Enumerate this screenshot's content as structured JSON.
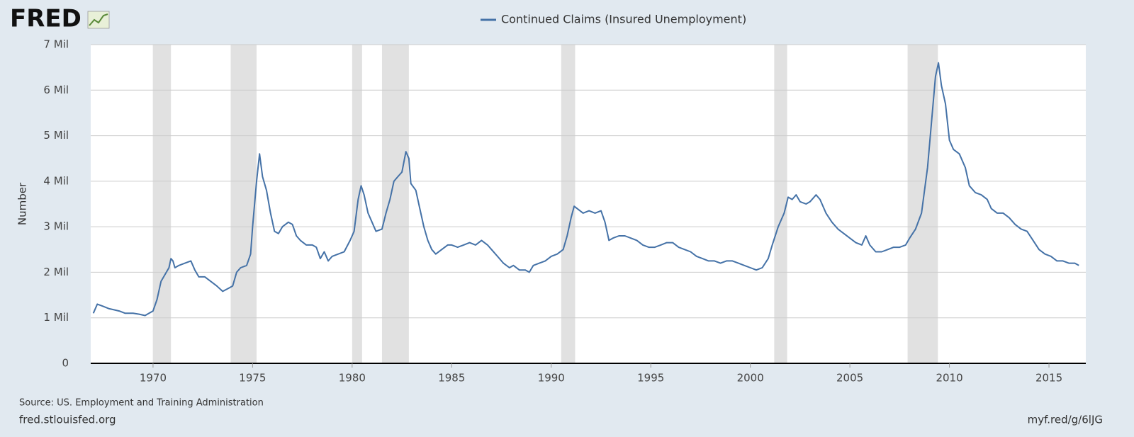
{
  "chart_data": {
    "type": "line",
    "logo": "FRED",
    "ylabel": "Number",
    "source": "Source: US. Employment and Training Administration",
    "site": "fred.stlouisfed.org",
    "short_url": "myf.red/g/6lJG",
    "xlim": [
      1966.87,
      2016.85
    ],
    "ylim": [
      0,
      7
    ],
    "xticks": [
      1970,
      1975,
      1980,
      1985,
      1990,
      1995,
      2000,
      2005,
      2010,
      2015
    ],
    "yticks": [
      {
        "value": 0,
        "label": "0"
      },
      {
        "value": 1,
        "label": "1 Mil"
      },
      {
        "value": 2,
        "label": "2 Mil"
      },
      {
        "value": 3,
        "label": "3 Mil"
      },
      {
        "value": 4,
        "label": "4 Mil"
      },
      {
        "value": 5,
        "label": "5 Mil"
      },
      {
        "value": 6,
        "label": "6 Mil"
      },
      {
        "value": 7,
        "label": "7 Mil"
      }
    ],
    "grid": true,
    "recession_color": "#e1e1e1",
    "recessions": [
      [
        1969.99,
        1970.9
      ],
      [
        1973.9,
        1975.2
      ],
      [
        1980.0,
        1980.5
      ],
      [
        1981.5,
        1982.85
      ],
      [
        1990.5,
        1991.2
      ],
      [
        2001.2,
        2001.85
      ],
      [
        2007.9,
        2009.42
      ]
    ],
    "x": [
      1967.0,
      1967.2,
      1967.5,
      1967.8,
      1968.0,
      1968.3,
      1968.6,
      1969.0,
      1969.3,
      1969.6,
      1969.8,
      1970.0,
      1970.2,
      1970.4,
      1970.6,
      1970.8,
      1970.9,
      1971.0,
      1971.1,
      1971.3,
      1971.6,
      1971.9,
      1972.1,
      1972.3,
      1972.6,
      1972.9,
      1973.2,
      1973.5,
      1973.8,
      1974.0,
      1974.2,
      1974.4,
      1974.7,
      1974.9,
      1975.0,
      1975.2,
      1975.35,
      1975.5,
      1975.7,
      1975.9,
      1976.1,
      1976.3,
      1976.5,
      1976.8,
      1977.0,
      1977.2,
      1977.4,
      1977.7,
      1978.0,
      1978.2,
      1978.4,
      1978.6,
      1978.8,
      1979.0,
      1979.3,
      1979.6,
      1979.9,
      1980.1,
      1980.3,
      1980.45,
      1980.6,
      1980.8,
      1981.0,
      1981.2,
      1981.5,
      1981.7,
      1981.9,
      1982.1,
      1982.3,
      1982.5,
      1982.7,
      1982.85,
      1982.95,
      1983.2,
      1983.4,
      1983.6,
      1983.8,
      1984.0,
      1984.2,
      1984.5,
      1984.8,
      1985.0,
      1985.3,
      1985.6,
      1985.9,
      1986.2,
      1986.5,
      1986.8,
      1987.0,
      1987.3,
      1987.6,
      1987.9,
      1988.1,
      1988.4,
      1988.7,
      1988.9,
      1989.1,
      1989.4,
      1989.7,
      1990.0,
      1990.3,
      1990.6,
      1990.8,
      1991.0,
      1991.15,
      1991.3,
      1991.6,
      1991.9,
      1992.2,
      1992.5,
      1992.7,
      1992.9,
      1993.1,
      1993.4,
      1993.7,
      1994.0,
      1994.3,
      1994.6,
      1994.9,
      1995.2,
      1995.5,
      1995.8,
      1996.1,
      1996.4,
      1996.7,
      1997.0,
      1997.3,
      1997.6,
      1997.9,
      1998.2,
      1998.5,
      1998.8,
      1999.1,
      1999.4,
      1999.7,
      2000.0,
      2000.3,
      2000.6,
      2000.9,
      2001.1,
      2001.4,
      2001.7,
      2001.9,
      2002.1,
      2002.3,
      2002.5,
      2002.8,
      2003.0,
      2003.3,
      2003.5,
      2003.8,
      2004.1,
      2004.4,
      2004.7,
      2005.0,
      2005.3,
      2005.6,
      2005.8,
      2006.0,
      2006.3,
      2006.6,
      2006.9,
      2007.2,
      2007.5,
      2007.8,
      2008.0,
      2008.3,
      2008.6,
      2008.9,
      2009.1,
      2009.3,
      2009.45,
      2009.6,
      2009.8,
      2010.0,
      2010.2,
      2010.5,
      2010.8,
      2011.0,
      2011.3,
      2011.6,
      2011.9,
      2012.1,
      2012.4,
      2012.7,
      2013.0,
      2013.3,
      2013.6,
      2013.9,
      2014.2,
      2014.5,
      2014.8,
      2015.1,
      2015.4,
      2015.7,
      2016.0,
      2016.3,
      2016.5
    ],
    "series": [
      {
        "name": "Continued Claims (Insured Unemployment)",
        "color": "#4572a7",
        "values": [
          1.1,
          1.3,
          1.25,
          1.2,
          1.18,
          1.15,
          1.1,
          1.1,
          1.08,
          1.05,
          1.1,
          1.15,
          1.4,
          1.8,
          1.95,
          2.1,
          2.3,
          2.25,
          2.1,
          2.15,
          2.2,
          2.25,
          2.05,
          1.9,
          1.9,
          1.8,
          1.7,
          1.58,
          1.65,
          1.7,
          2.0,
          2.1,
          2.15,
          2.4,
          3.0,
          4.0,
          4.6,
          4.1,
          3.8,
          3.3,
          2.9,
          2.85,
          3.0,
          3.1,
          3.05,
          2.8,
          2.7,
          2.6,
          2.6,
          2.55,
          2.3,
          2.45,
          2.25,
          2.35,
          2.4,
          2.45,
          2.7,
          2.9,
          3.6,
          3.9,
          3.7,
          3.3,
          3.1,
          2.9,
          2.95,
          3.3,
          3.6,
          4.0,
          4.1,
          4.2,
          4.65,
          4.5,
          3.95,
          3.8,
          3.4,
          3.0,
          2.7,
          2.5,
          2.4,
          2.5,
          2.6,
          2.6,
          2.55,
          2.6,
          2.65,
          2.6,
          2.7,
          2.6,
          2.5,
          2.35,
          2.2,
          2.1,
          2.15,
          2.05,
          2.05,
          2.0,
          2.15,
          2.2,
          2.25,
          2.35,
          2.4,
          2.5,
          2.8,
          3.2,
          3.45,
          3.4,
          3.3,
          3.35,
          3.3,
          3.35,
          3.1,
          2.7,
          2.75,
          2.8,
          2.8,
          2.75,
          2.7,
          2.6,
          2.55,
          2.55,
          2.6,
          2.65,
          2.65,
          2.55,
          2.5,
          2.45,
          2.35,
          2.3,
          2.25,
          2.25,
          2.2,
          2.25,
          2.25,
          2.2,
          2.15,
          2.1,
          2.05,
          2.1,
          2.3,
          2.6,
          3.0,
          3.3,
          3.65,
          3.6,
          3.7,
          3.55,
          3.5,
          3.55,
          3.7,
          3.6,
          3.3,
          3.1,
          2.95,
          2.85,
          2.75,
          2.65,
          2.6,
          2.8,
          2.6,
          2.45,
          2.45,
          2.5,
          2.55,
          2.55,
          2.6,
          2.75,
          2.95,
          3.3,
          4.3,
          5.3,
          6.3,
          6.6,
          6.1,
          5.7,
          4.9,
          4.7,
          4.6,
          4.3,
          3.9,
          3.75,
          3.7,
          3.6,
          3.4,
          3.3,
          3.3,
          3.2,
          3.05,
          2.95,
          2.9,
          2.7,
          2.5,
          2.4,
          2.35,
          2.25,
          2.25,
          2.2,
          2.2,
          2.15
        ]
      }
    ]
  }
}
